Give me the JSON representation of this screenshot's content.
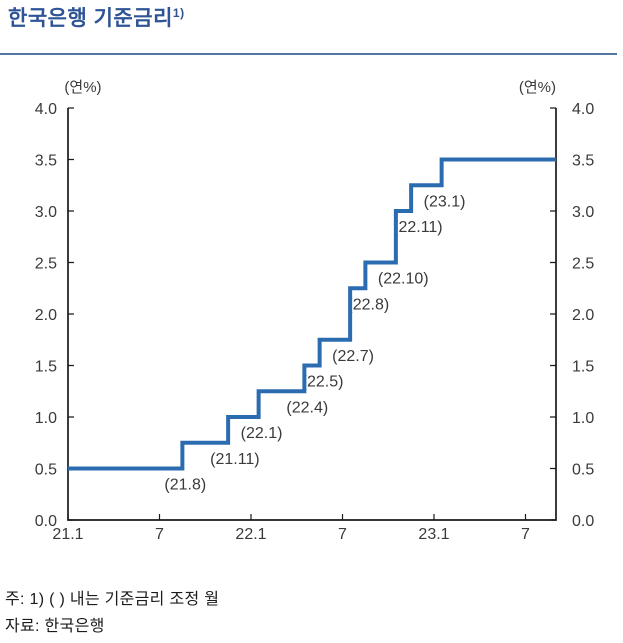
{
  "header": {
    "title": "한국은행 기준금리",
    "title_footnote_marker": "1)"
  },
  "chart_data": {
    "type": "line",
    "subtype": "step",
    "title": "한국은행 기준금리",
    "unit_label_left": "(연%)",
    "unit_label_right": "(연%)",
    "xlabel": "",
    "ylabel": "",
    "ylim": [
      0.0,
      4.0
    ],
    "y_tick_step": 0.5,
    "y_tick_labels": [
      "0.0",
      "0.5",
      "1.0",
      "1.5",
      "2.0",
      "2.5",
      "3.0",
      "3.5",
      "4.0"
    ],
    "x_domain_months": [
      0,
      32
    ],
    "x_ticks": [
      {
        "label": "21.1",
        "month_index": 0
      },
      {
        "label": "7",
        "month_index": 6
      },
      {
        "label": "22.1",
        "month_index": 12
      },
      {
        "label": "7",
        "month_index": 18
      },
      {
        "label": "23.1",
        "month_index": 24
      },
      {
        "label": "7",
        "month_index": 30
      }
    ],
    "grid": false,
    "legend": false,
    "series": [
      {
        "name": "기준금리",
        "color": "#2B6CB0",
        "start_value": 0.5,
        "changes": [
          {
            "month": "21.8",
            "annotation": "(21.8)",
            "value": 0.75
          },
          {
            "month": "21.11",
            "annotation": "(21.11)",
            "value": 1.0
          },
          {
            "month": "22.1",
            "annotation": "(22.1)",
            "value": 1.25
          },
          {
            "month": "22.4",
            "annotation": "(22.4)",
            "value": 1.5
          },
          {
            "month": "22.5",
            "annotation": "(22.5)",
            "value": 1.75
          },
          {
            "month": "22.7",
            "annotation": "(22.7)",
            "value": 2.25
          },
          {
            "month": "22.8",
            "annotation": "(22.8)",
            "value": 2.5
          },
          {
            "month": "22.10",
            "annotation": "(22.10)",
            "value": 3.0
          },
          {
            "month": "22.11",
            "annotation": "(22.11)",
            "value": 3.25
          },
          {
            "month": "23.1",
            "annotation": "(23.1)",
            "value": 3.5
          }
        ]
      }
    ],
    "colors": {
      "line": "#2B6CB0",
      "axis": "#1A1A1A",
      "tick_text": "#3A3A3A",
      "title": "#2F5496",
      "divider": "#54779F"
    }
  },
  "footer": {
    "note": "주: 1) ( ) 내는 기준금리 조정 월",
    "source": "자료: 한국은행"
  }
}
